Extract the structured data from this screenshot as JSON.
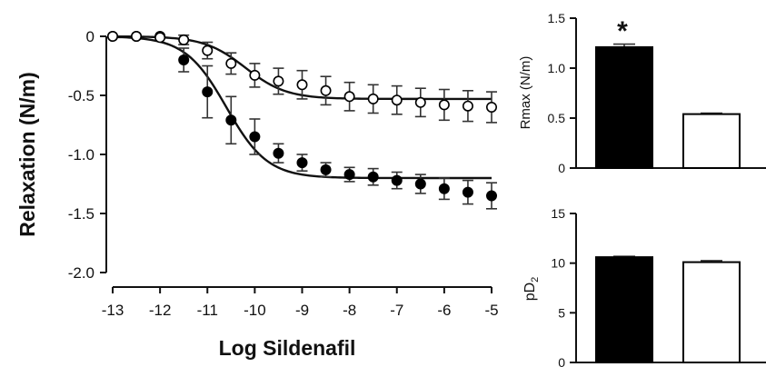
{
  "chart_data": [
    {
      "type": "scatter",
      "title": "",
      "xlabel": "Log Sildenafil",
      "ylabel": "Relaxation (N/m)",
      "xlim": [
        -13,
        -5
      ],
      "ylim": [
        -2.0,
        0
      ],
      "x_ticks": [
        "-13",
        "-12",
        "-11",
        "-10",
        "-9",
        "-8",
        "-7",
        "-6",
        "-5"
      ],
      "y_ticks": [
        "0",
        "-0.5",
        "-1.0",
        "-1.5",
        "-2.0"
      ],
      "series": [
        {
          "marker": "filled-circle",
          "color": "#000000",
          "x": [
            -13,
            -12.5,
            -12,
            -11.5,
            -11,
            -10.5,
            -10,
            -9.5,
            -9,
            -8.5,
            -8,
            -7.5,
            -7,
            -6.5,
            -6,
            -5.5,
            -5
          ],
          "y": [
            0,
            0,
            0,
            -0.2,
            -0.47,
            -0.71,
            -0.85,
            -0.99,
            -1.07,
            -1.13,
            -1.17,
            -1.19,
            -1.22,
            -1.25,
            -1.29,
            -1.32,
            -1.35
          ],
          "err": [
            0,
            0,
            0,
            0.1,
            0.22,
            0.2,
            0.15,
            0.08,
            0.07,
            0.06,
            0.06,
            0.07,
            0.07,
            0.08,
            0.09,
            0.1,
            0.11
          ],
          "fit": {
            "top": 0,
            "bottom": -1.2,
            "logEC50": -10.6,
            "hill": 1.0
          }
        },
        {
          "marker": "open-circle",
          "color": "#000000",
          "x": [
            -13,
            -12.5,
            -12,
            -11.5,
            -11,
            -10.5,
            -10,
            -9.5,
            -9,
            -8.5,
            -8,
            -7.5,
            -7,
            -6.5,
            -6,
            -5.5,
            -5
          ],
          "y": [
            0,
            0,
            -0.01,
            -0.03,
            -0.12,
            -0.23,
            -0.33,
            -0.38,
            -0.41,
            -0.46,
            -0.51,
            -0.53,
            -0.54,
            -0.56,
            -0.58,
            -0.59,
            -0.6
          ],
          "err": [
            0,
            0,
            0,
            0.04,
            0.07,
            0.09,
            0.1,
            0.11,
            0.12,
            0.12,
            0.12,
            0.12,
            0.12,
            0.12,
            0.13,
            0.13,
            0.13
          ],
          "fit": {
            "top": 0,
            "bottom": -0.53,
            "logEC50": -10.2,
            "hill": 1.0
          }
        }
      ]
    },
    {
      "type": "bar",
      "title": "",
      "xlabel": "",
      "ylabel": "Rmax (N/m)",
      "ylim": [
        0,
        1.5
      ],
      "y_ticks": [
        "0",
        "0.5",
        "1.0",
        "1.5"
      ],
      "categories": [
        "",
        ""
      ],
      "values": [
        1.21,
        0.54
      ],
      "errors": [
        0.03,
        0.01
      ],
      "fills": [
        "#000000",
        "#ffffff"
      ],
      "annotation": "*"
    },
    {
      "type": "bar",
      "title": "",
      "xlabel": "",
      "ylabel": "pD2",
      "ylabel_main": "pD",
      "ylabel_sub": "2",
      "ylim": [
        0,
        15
      ],
      "y_ticks": [
        "0",
        "5",
        "10",
        "15"
      ],
      "categories": [
        "",
        ""
      ],
      "values": [
        10.6,
        10.1
      ],
      "errors": [
        0.08,
        0.15
      ],
      "fills": [
        "#000000",
        "#ffffff"
      ]
    }
  ]
}
